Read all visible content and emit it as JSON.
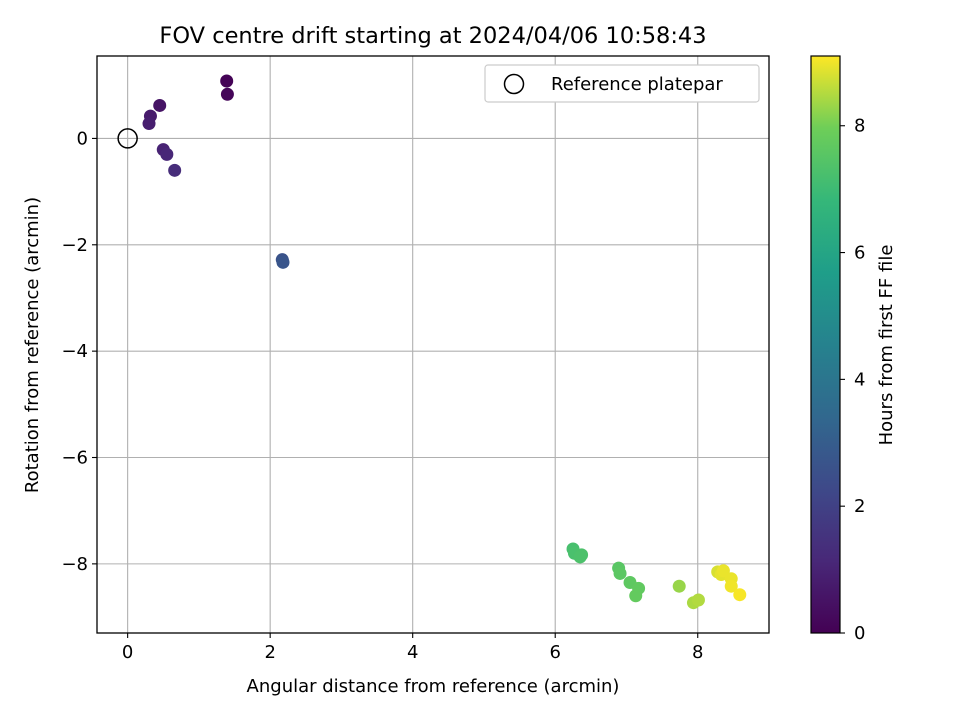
{
  "chart_data": {
    "type": "scatter",
    "title": "FOV centre drift starting at 2024/04/06 10:58:43",
    "xlabel": "Angular distance from reference (arcmin)",
    "ylabel": "Rotation from reference (arcmin)",
    "xlim": [
      -0.43,
      9.0
    ],
    "ylim": [
      -9.3,
      1.55
    ],
    "xticks": [
      0,
      2,
      4,
      6,
      8
    ],
    "yticks": [
      0,
      -2,
      -4,
      -6,
      -8
    ],
    "xtick_labels": [
      "0",
      "2",
      "4",
      "6",
      "8"
    ],
    "ytick_labels": [
      "0",
      "−2",
      "−4",
      "−6",
      "−8"
    ],
    "grid": true,
    "legend": {
      "position": "top-right",
      "entries": [
        "Reference platepar"
      ]
    },
    "reference_point": {
      "x": 0,
      "y": 0,
      "label": "Reference platepar"
    },
    "colorbar": {
      "label": "Hours from first FF file",
      "colormap": "viridis",
      "range": [
        0,
        9.1
      ],
      "ticks": [
        0,
        2,
        4,
        6,
        8
      ],
      "tick_labels": [
        "0",
        "2",
        "4",
        "6",
        "8"
      ]
    },
    "series": [
      {
        "points": [
          {
            "x": 1.39,
            "y": 1.08,
            "hours": 0.05
          },
          {
            "x": 1.4,
            "y": 0.83,
            "hours": 0.15
          },
          {
            "x": 0.45,
            "y": 0.62,
            "hours": 0.55
          },
          {
            "x": 0.32,
            "y": 0.42,
            "hours": 0.75
          },
          {
            "x": 0.3,
            "y": 0.28,
            "hours": 0.85
          },
          {
            "x": 0.5,
            "y": -0.21,
            "hours": 1.0
          },
          {
            "x": 0.55,
            "y": -0.3,
            "hours": 1.1
          },
          {
            "x": 0.66,
            "y": -0.6,
            "hours": 1.3
          },
          {
            "x": 2.17,
            "y": -2.28,
            "hours": 2.6
          },
          {
            "x": 2.18,
            "y": -2.33,
            "hours": 2.7
          },
          {
            "x": 6.25,
            "y": -7.72,
            "hours": 7.2
          },
          {
            "x": 6.27,
            "y": -7.8,
            "hours": 7.25
          },
          {
            "x": 6.37,
            "y": -7.83,
            "hours": 7.3
          },
          {
            "x": 6.35,
            "y": -7.87,
            "hours": 7.3
          },
          {
            "x": 6.89,
            "y": -8.08,
            "hours": 7.55
          },
          {
            "x": 6.91,
            "y": -8.18,
            "hours": 7.6
          },
          {
            "x": 7.05,
            "y": -8.35,
            "hours": 7.65
          },
          {
            "x": 7.17,
            "y": -8.46,
            "hours": 7.7
          },
          {
            "x": 7.13,
            "y": -8.6,
            "hours": 7.75
          },
          {
            "x": 7.74,
            "y": -8.42,
            "hours": 8.3
          },
          {
            "x": 7.94,
            "y": -8.73,
            "hours": 8.45
          },
          {
            "x": 8.01,
            "y": -8.68,
            "hours": 8.5
          },
          {
            "x": 8.28,
            "y": -8.15,
            "hours": 8.8
          },
          {
            "x": 8.33,
            "y": -8.2,
            "hours": 8.9
          },
          {
            "x": 8.36,
            "y": -8.13,
            "hours": 8.95
          },
          {
            "x": 8.47,
            "y": -8.28,
            "hours": 8.95
          },
          {
            "x": 8.47,
            "y": -8.42,
            "hours": 9.0
          },
          {
            "x": 8.59,
            "y": -8.58,
            "hours": 9.05
          }
        ]
      }
    ]
  }
}
